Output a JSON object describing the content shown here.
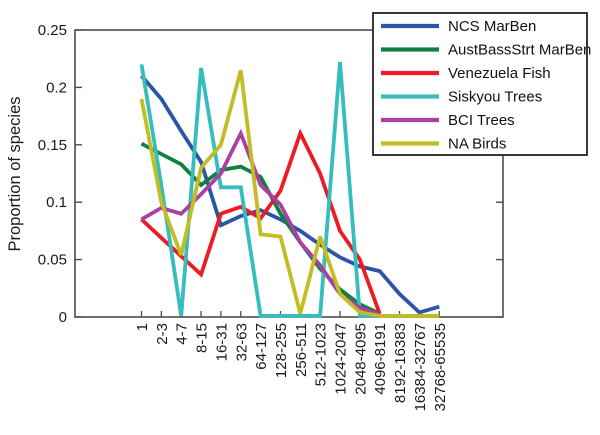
{
  "chart_data": {
    "type": "line",
    "title": "",
    "xlabel": "",
    "ylabel": "Proportion of species",
    "ylim": [
      0,
      0.25
    ],
    "grid": false,
    "legend_position": "top-right",
    "axis_color": "#4d4d4d",
    "tick_label_color": "#1a1a1a",
    "y_tick_labels": [
      "0",
      "0.05",
      "0.1",
      "0.15",
      "0.2",
      "0.25"
    ],
    "y_tick_values": [
      0,
      0.05,
      0.1,
      0.15,
      0.2,
      0.25
    ],
    "categories": [
      "1",
      "2-3",
      "4-7",
      "8-15",
      "16-31",
      "32-63",
      "64-127",
      "128-255",
      "256-511",
      "512-1023",
      "1024-2047",
      "2048-4095",
      "4096-8191",
      "8192-16383",
      "16384-32767",
      "32768-65535"
    ],
    "series": [
      {
        "name": "NCS MarBen",
        "color": "#2b55a5",
        "values": [
          0.21,
          0.19,
          0.162,
          0.135,
          0.08,
          0.088,
          0.093,
          0.085,
          0.075,
          0.063,
          0.052,
          0.044,
          0.04,
          0.02,
          0.004,
          0.009
        ]
      },
      {
        "name": "AustBassStrt MarBen",
        "color": "#108040",
        "values": [
          0.151,
          0.142,
          0.133,
          0.115,
          0.128,
          0.131,
          0.122,
          0.09,
          0.065,
          0.042,
          0.024,
          0.011,
          0.003,
          null,
          null,
          null
        ]
      },
      {
        "name": "Venezuela Fish",
        "color": "#ed1c24",
        "values": [
          0.085,
          0.069,
          0.053,
          0.037,
          0.09,
          0.096,
          0.086,
          0.11,
          0.16,
          0.125,
          0.075,
          0.05,
          0.003,
          null,
          null,
          null
        ]
      },
      {
        "name": "Siskyou Trees",
        "color": "#36bdbd",
        "values": [
          0.22,
          0.115,
          0.001,
          0.217,
          0.113,
          0.113,
          0.001,
          0.001,
          0.001,
          0.001,
          0.222,
          0.001,
          0.001,
          null,
          null,
          null
        ]
      },
      {
        "name": "BCI Trees",
        "color": "#aa3fa4",
        "values": [
          0.085,
          0.095,
          0.09,
          0.107,
          0.125,
          0.16,
          0.115,
          0.098,
          0.065,
          0.045,
          0.02,
          0.008,
          0.002,
          null,
          null,
          null
        ]
      },
      {
        "name": "NA Birds",
        "color": "#c3bc23",
        "values": [
          0.19,
          0.1,
          0.054,
          0.13,
          0.15,
          0.215,
          0.072,
          0.07,
          0.003,
          0.07,
          0.02,
          0.004,
          0.001,
          0.001,
          0.001,
          0.001
        ]
      }
    ]
  }
}
